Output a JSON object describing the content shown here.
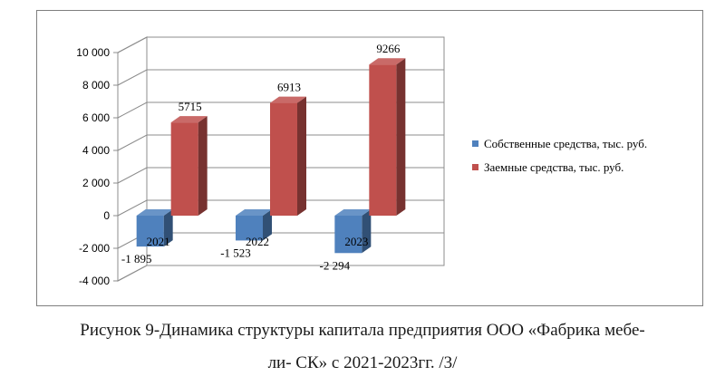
{
  "chart_data": {
    "type": "bar",
    "categories": [
      "2021",
      "2022",
      "2023"
    ],
    "series": [
      {
        "name": "Собственные средства, тыс. руб.",
        "values": [
          -1895,
          -1523,
          -2294
        ],
        "labels": [
          "-1 895",
          "-1 523",
          "-2 294"
        ],
        "color": "#4f81bd"
      },
      {
        "name": "Заемные средства, тыс. руб.",
        "values": [
          5715,
          6913,
          9266
        ],
        "labels": [
          "5715",
          "6913",
          "9266"
        ],
        "color": "#c0504d"
      }
    ],
    "ylim": [
      -4000,
      10000
    ],
    "yticks": [
      10000,
      8000,
      6000,
      4000,
      2000,
      0,
      -2000,
      -4000
    ],
    "ytick_labels": [
      "10 000",
      "8 000",
      "6 000",
      "4 000",
      "2 000",
      "0",
      "-2 000",
      "-4 000"
    ],
    "grid": true,
    "legend_position": "right",
    "style": "3d"
  },
  "caption": {
    "line1": "Рисунок 9-Динамика структуры капитала предприятия ООО «Фабрика мебе-",
    "line2": "ли- СК» с 2021-2023гг. /3/"
  }
}
